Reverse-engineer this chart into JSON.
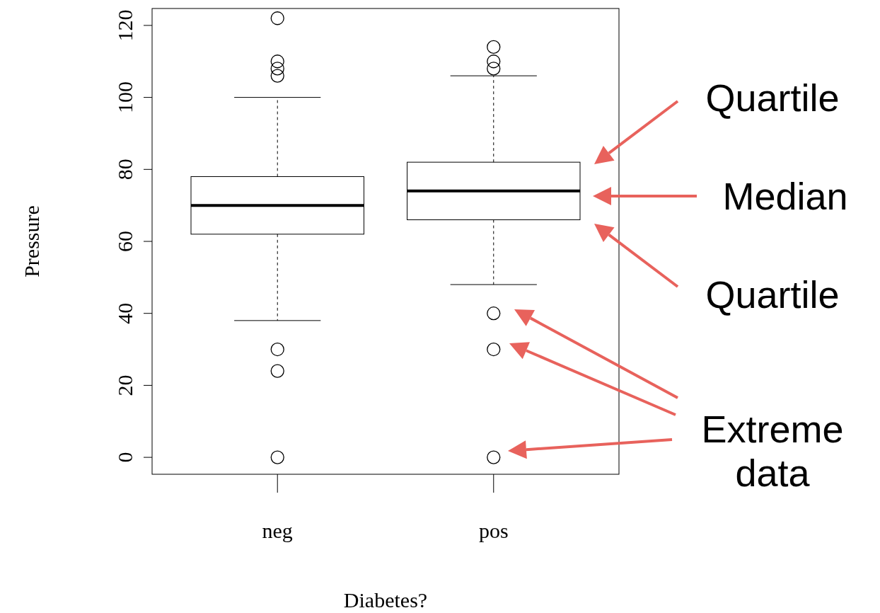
{
  "chart_data": {
    "type": "box",
    "xlabel": "Diabetes?",
    "ylabel": "Pressure",
    "categories": [
      "neg",
      "pos"
    ],
    "boxes": [
      {
        "low": 38,
        "q1": 62,
        "median": 70,
        "q3": 78,
        "high": 100,
        "outliers": [
          0,
          24,
          30,
          106,
          108,
          110,
          122
        ]
      },
      {
        "low": 48,
        "q1": 66,
        "median": 74,
        "q3": 82,
        "high": 106,
        "outliers": [
          0,
          30,
          40,
          108,
          110,
          114
        ]
      }
    ],
    "ylim": [
      -4.7,
      124.7
    ],
    "yticks": [
      0,
      20,
      40,
      60,
      80,
      100,
      120
    ],
    "grid": false,
    "annotations": [
      "Quartile",
      "Median",
      "Quartile",
      "Extreme data"
    ]
  }
}
